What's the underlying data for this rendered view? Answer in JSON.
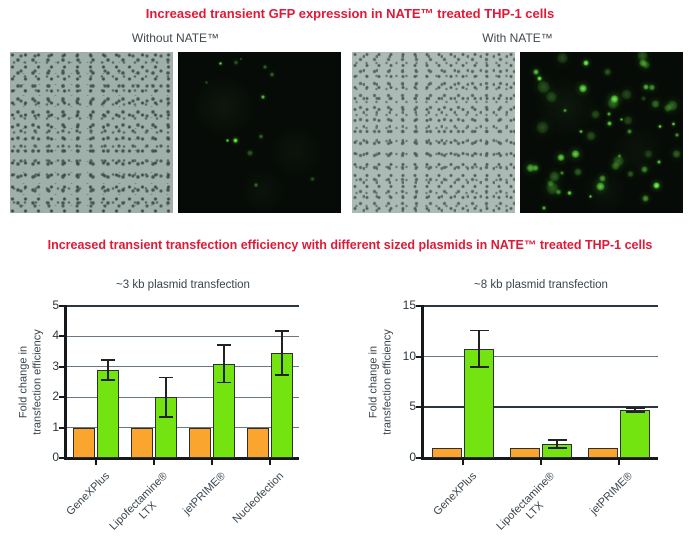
{
  "colors": {
    "title_red": "#e11937",
    "bar_orange": "#faa62e",
    "bar_green": "#74e410",
    "gfp_green": "#5ce05c"
  },
  "section1": {
    "title": "Increased transient GFP expression in NATE™ treated THP-1 cells",
    "pair_labels": [
      "Without NATE™",
      "With NATE™"
    ],
    "panels": [
      {
        "name": "micro-panel-brightfield-without-nate",
        "kind": "brightfield"
      },
      {
        "name": "micro-panel-gfp-without-nate",
        "kind": "fluorescence",
        "gfp_level": "low"
      },
      {
        "name": "micro-panel-brightfield-with-nate",
        "kind": "brightfield"
      },
      {
        "name": "micro-panel-gfp-with-nate",
        "kind": "fluorescence",
        "gfp_level": "high"
      }
    ]
  },
  "section2": {
    "title": "Increased transient transfection efficiency with different sized plasmids in NATE™ treated THP-1 cells"
  },
  "chart_data": [
    {
      "type": "bar",
      "title": "~3 kb plasmid transfection",
      "ylabel_lines": [
        "Fold change in",
        "transfection efficiency"
      ],
      "ylim": [
        0,
        5
      ],
      "yticks": [
        0,
        1,
        2,
        3,
        4,
        5
      ],
      "grid": "on",
      "dark_gridlines": [
        5
      ],
      "legend": "none",
      "categories": [
        "GeneXPlus",
        "Lipofectamine®\nLTX",
        "jetPRIME®",
        "Nucleofection"
      ],
      "series": [
        {
          "name": "orange",
          "color": "#faa62e",
          "values": [
            1,
            1,
            1,
            1
          ],
          "errors": [
            0,
            0,
            0,
            0
          ]
        },
        {
          "name": "green",
          "color": "#74e410",
          "values": [
            2.9,
            2.0,
            3.1,
            3.45
          ],
          "errors": [
            0.33,
            0.65,
            0.62,
            0.72
          ]
        }
      ]
    },
    {
      "type": "bar",
      "title": "~8 kb plasmid transfection",
      "ylabel_lines": [
        "Fold change in",
        "transfection efficiency"
      ],
      "ylim": [
        0,
        15
      ],
      "yticks": [
        0,
        5,
        10,
        15
      ],
      "grid": "on",
      "dark_gridlines": [
        5,
        15
      ],
      "legend": "none",
      "categories": [
        "GeneXPlus",
        "Lipofectamine®\nLTX",
        "jetPRIME®"
      ],
      "series": [
        {
          "name": "orange",
          "color": "#faa62e",
          "values": [
            1,
            1,
            1
          ],
          "errors": [
            0,
            0,
            0
          ]
        },
        {
          "name": "green",
          "color": "#74e410",
          "values": [
            10.8,
            1.4,
            4.75
          ],
          "errors": [
            1.8,
            0.4,
            0.2
          ]
        }
      ]
    }
  ]
}
